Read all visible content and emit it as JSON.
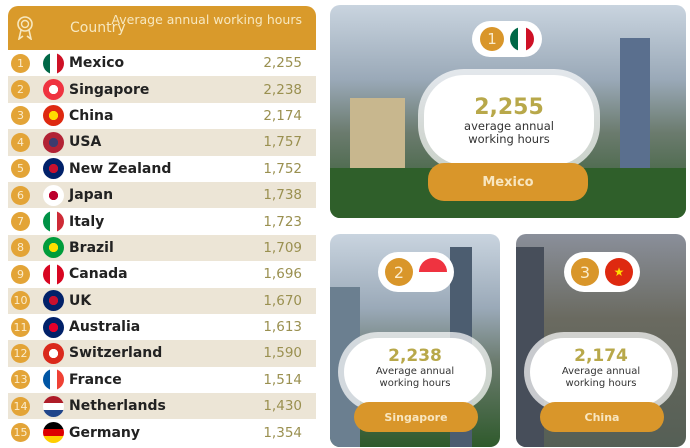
{
  "header": {
    "icon": "medal-icon",
    "country": "Country",
    "hours": "Average annual working hours"
  },
  "rows": [
    {
      "rank": "1",
      "country": "Mexico",
      "hours": "2,255",
      "flag": [
        "#006847",
        "#ffffff",
        "#ce1126"
      ]
    },
    {
      "rank": "2",
      "country": "Singapore",
      "hours": "2,238",
      "flag": [
        "#ef3340",
        "#ffffff"
      ]
    },
    {
      "rank": "3",
      "country": "China",
      "hours": "2,174",
      "flag": [
        "#de2910",
        "#ffde00"
      ]
    },
    {
      "rank": "4",
      "country": "USA",
      "hours": "1,757",
      "flag": [
        "#b22234",
        "#3c3b6e"
      ]
    },
    {
      "rank": "5",
      "country": "New Zealand",
      "hours": "1,752",
      "flag": [
        "#012169",
        "#c8102e"
      ]
    },
    {
      "rank": "6",
      "country": "Japan",
      "hours": "1,738",
      "flag": [
        "#ffffff",
        "#bc002d"
      ]
    },
    {
      "rank": "7",
      "country": "Italy",
      "hours": "1,723",
      "flag": [
        "#009246",
        "#ffffff",
        "#ce2b37"
      ]
    },
    {
      "rank": "8",
      "country": "Brazil",
      "hours": "1,709",
      "flag": [
        "#009c3b",
        "#ffdf00"
      ]
    },
    {
      "rank": "9",
      "country": "Canada",
      "hours": "1,696",
      "flag": [
        "#d80621",
        "#ffffff",
        "#d80621"
      ]
    },
    {
      "rank": "10",
      "country": "UK",
      "hours": "1,670",
      "flag": [
        "#012169",
        "#c8102e"
      ]
    },
    {
      "rank": "11",
      "country": "Australia",
      "hours": "1,613",
      "flag": [
        "#012169",
        "#e4002b"
      ]
    },
    {
      "rank": "12",
      "country": "Switzerland",
      "hours": "1,590",
      "flag": [
        "#da291c",
        "#ffffff"
      ]
    },
    {
      "rank": "13",
      "country": "France",
      "hours": "1,514",
      "flag": [
        "#0055a4",
        "#ffffff",
        "#ef4135"
      ]
    },
    {
      "rank": "14",
      "country": "Netherlands",
      "hours": "1,430",
      "flag": [
        "#ae1c28",
        "#ffffff",
        "#21468b"
      ]
    },
    {
      "rank": "15",
      "country": "Germany",
      "hours": "1,354",
      "flag": [
        "#000000",
        "#dd0000",
        "#ffce00"
      ]
    }
  ],
  "panels": [
    {
      "rank": "1",
      "hours": "2,255",
      "label": "average annual working hours",
      "country": "Mexico"
    },
    {
      "rank": "2",
      "hours": "2,238",
      "label": "Average annual working hours",
      "country": "Singapore"
    },
    {
      "rank": "3",
      "hours": "2,174",
      "label": "Average annual working hours",
      "country": "China"
    }
  ]
}
